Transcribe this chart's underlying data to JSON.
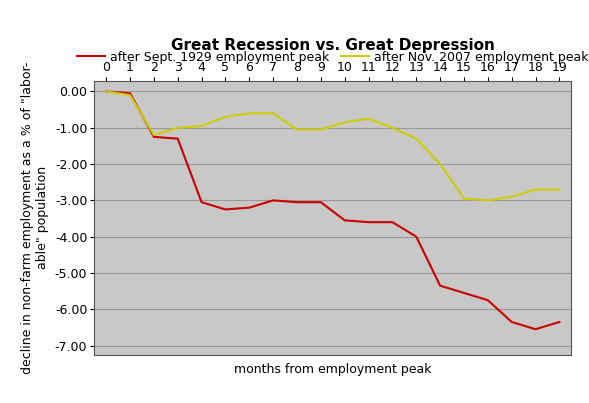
{
  "title": "Great Recession vs. Great Depression",
  "xlabel": "months from employment peak",
  "ylabel": "decline in non-farm employment as a % of \"labor-\nable\" population",
  "legend_labels": [
    "after Sept. 1929 employment peak",
    "after Nov. 2007 employment peak"
  ],
  "depression_x": [
    0,
    1,
    2,
    3,
    4,
    5,
    6,
    7,
    8,
    9,
    10,
    11,
    12,
    13,
    14,
    15,
    16,
    17,
    18,
    19
  ],
  "depression_y": [
    0.0,
    -0.05,
    -1.25,
    -1.3,
    -3.05,
    -3.25,
    -3.2,
    -3.0,
    -3.05,
    -3.05,
    -3.55,
    -3.6,
    -3.6,
    -4.0,
    -5.35,
    -5.55,
    -5.75,
    -6.35,
    -6.55,
    -6.35
  ],
  "recession_x": [
    0,
    1,
    2,
    3,
    4,
    5,
    6,
    7,
    8,
    9,
    10,
    11,
    12,
    13,
    14,
    15,
    16,
    17,
    18,
    19
  ],
  "recession_y": [
    0.0,
    -0.1,
    -1.2,
    -1.0,
    -0.95,
    -0.7,
    -0.6,
    -0.6,
    -1.05,
    -1.05,
    -0.85,
    -0.75,
    -1.0,
    -1.3,
    -2.0,
    -2.95,
    -3.0,
    -2.9,
    -2.7,
    -2.7
  ],
  "depression_color": "#cc0000",
  "recession_color": "#cccc00",
  "background_color": "#c8c8c8",
  "figure_color": "#ffffff",
  "ylim": [
    -7.25,
    0.3
  ],
  "xlim": [
    -0.5,
    19.5
  ],
  "yticks": [
    0.0,
    -1.0,
    -2.0,
    -3.0,
    -4.0,
    -5.0,
    -6.0,
    -7.0
  ],
  "xticks": [
    0,
    1,
    2,
    3,
    4,
    5,
    6,
    7,
    8,
    9,
    10,
    11,
    12,
    13,
    14,
    15,
    16,
    17,
    18,
    19
  ],
  "title_fontsize": 11,
  "axis_label_fontsize": 9,
  "tick_label_fontsize": 9,
  "legend_fontsize": 9
}
